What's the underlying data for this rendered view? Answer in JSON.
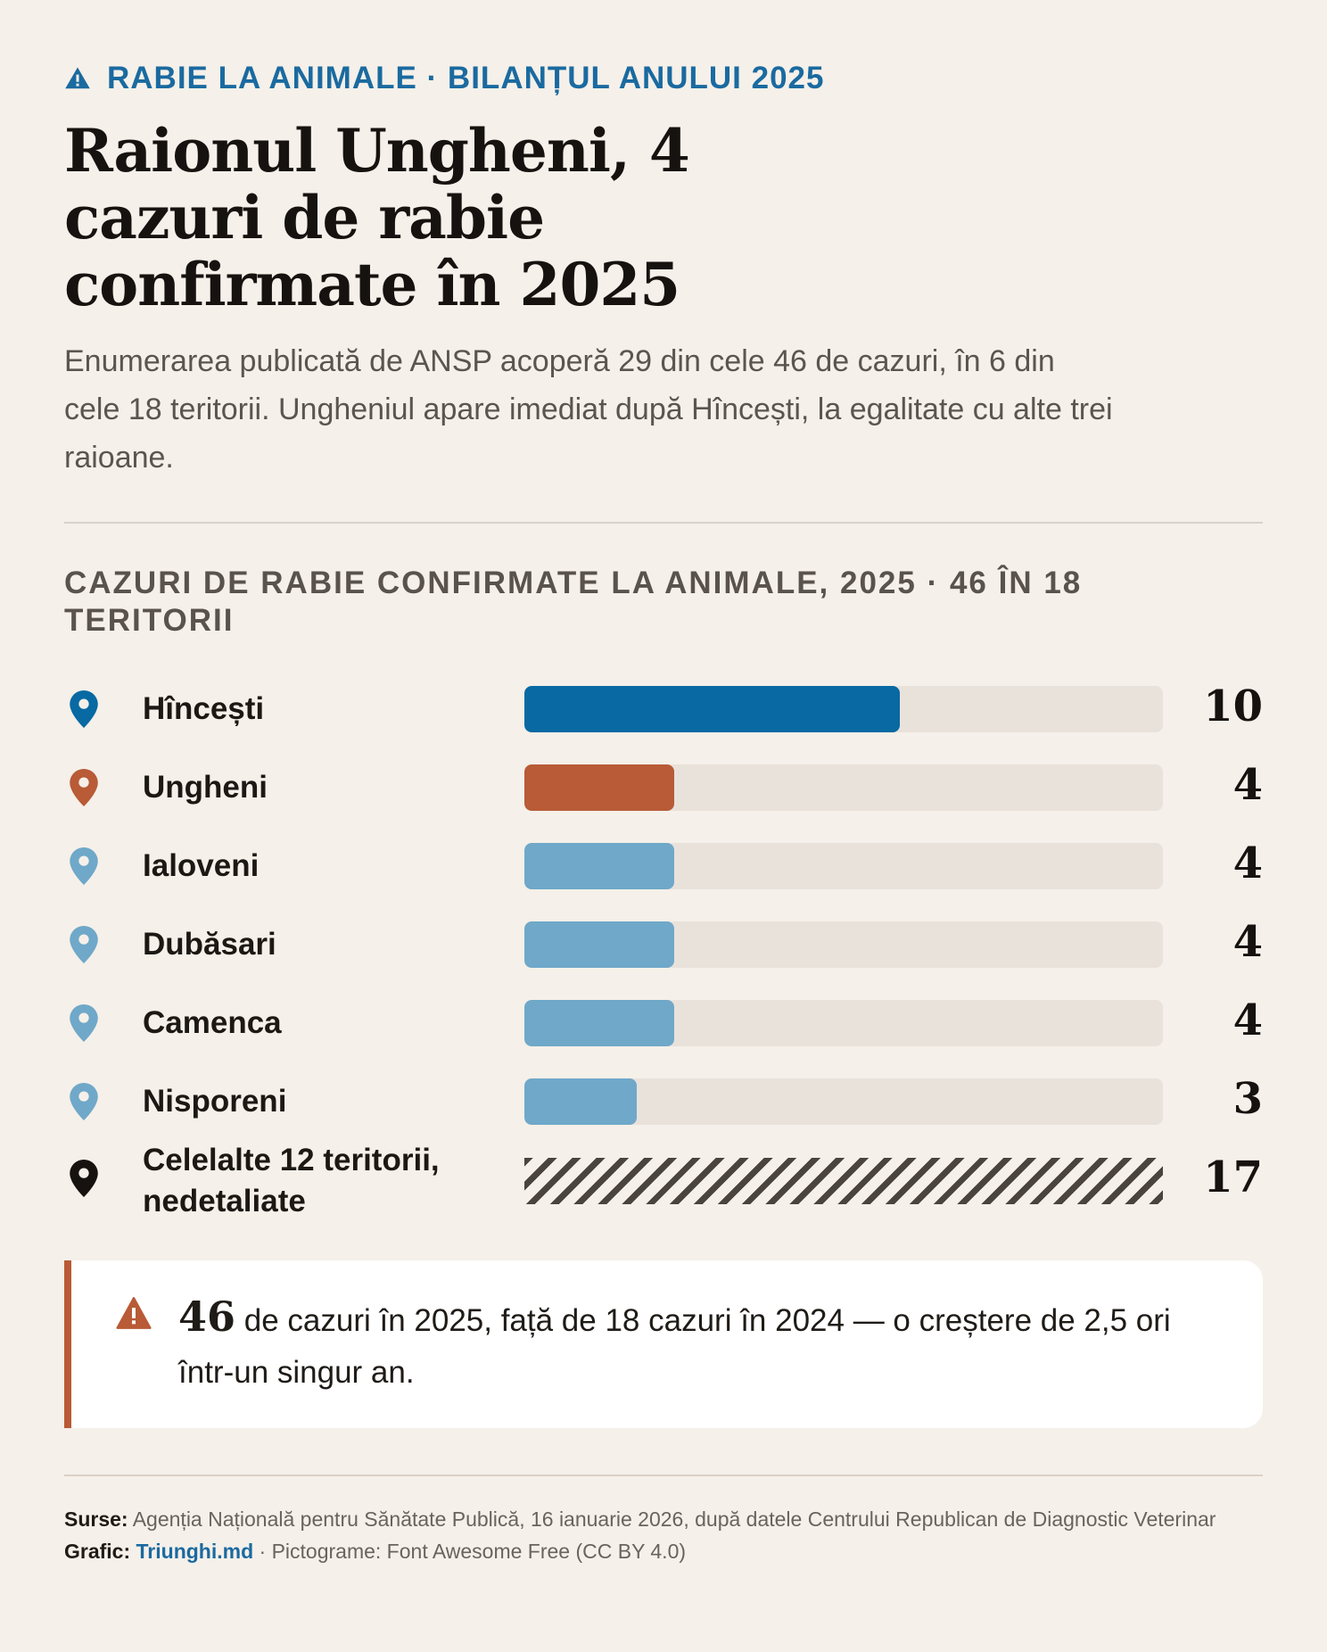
{
  "kicker": "RABIE LA ANIMALE · BILANȚUL ANULUI 2025",
  "headline": "Raionul Ungheni, 4 cazuri de rabie confirmate în 2025",
  "dek": "Enumerarea publicată de ANSP acoperă 29 din cele 46 de cazuri, în 6 din cele 18 teritorii. Ungheniul apare imediat după Hîncești, la egalitate cu alte trei raioane.",
  "chart_data": {
    "type": "bar",
    "orientation": "horizontal",
    "title": "CAZURI DE RABIE CONFIRMATE LA ANIMALE, 2025 · 46 ÎN 18 TERITORII",
    "categories": [
      "Hîncești",
      "Ungheni",
      "Ialoveni",
      "Dubăsari",
      "Camenca",
      "Nisporeni",
      "Celelalte 12 teritorii, nedetaliate"
    ],
    "values": [
      10,
      4,
      4,
      4,
      4,
      3,
      17
    ],
    "value_labels": [
      "10",
      "4",
      "4",
      "4",
      "4",
      "3",
      "17"
    ],
    "xlim": [
      0,
      17
    ],
    "bar_colors": [
      "#0869a3",
      "#b85b36",
      "#6fa8c9",
      "#6fa8c9",
      "#6fa8c9",
      "#6fa8c9",
      "hatched"
    ],
    "pin_colors": [
      "#0869a3",
      "#b85b36",
      "#6fa8c9",
      "#6fa8c9",
      "#6fa8c9",
      "#6fa8c9",
      "#16120f"
    ],
    "grid": false,
    "legend": "none"
  },
  "callout": {
    "number": "46",
    "text": " de cazuri în 2025, față de 18 cazuri în 2024 — o creștere de 2,5 ori într-un singur an.",
    "icon": "warning-triangle-icon",
    "accent": "#b85b36"
  },
  "footer": {
    "sources_label": "Surse:",
    "sources_text": " Agenția Națională pentru Sănătate Publică, 16 ianuarie 2026, după datele Centrului Republican de Diagnostic Veterinar",
    "graphic_label": "Grafic:",
    "brand": "Triunghi.md",
    "icons_credit": " · Pictograme: Font Awesome Free (CC BY 4.0)"
  },
  "colors": {
    "background": "#f5f0e9",
    "accent_blue": "#1a6aa0",
    "accent_rust": "#b85b36"
  }
}
